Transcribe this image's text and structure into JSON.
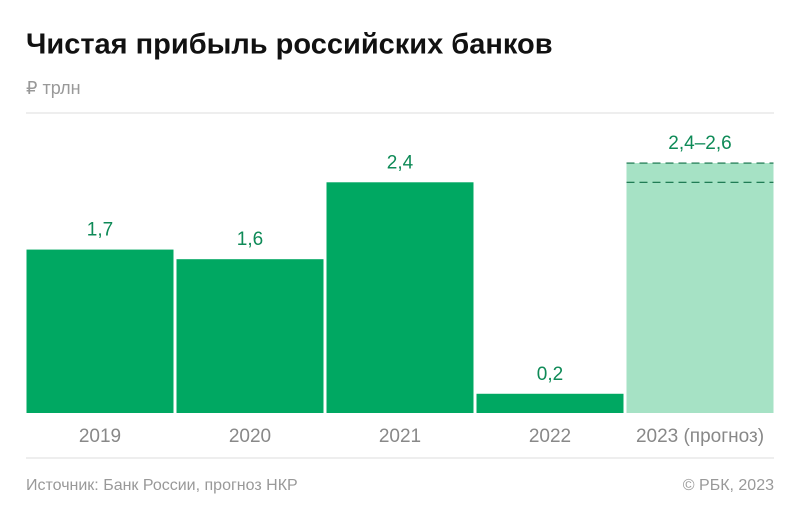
{
  "chart_data": {
    "type": "bar",
    "title": "Чистая прибыль российских банков",
    "subtitle": "₽ трлн",
    "categories": [
      "2019",
      "2020",
      "2021",
      "2022",
      "2023 (прогноз)"
    ],
    "values": [
      1.7,
      1.6,
      2.4,
      0.2,
      null
    ],
    "value_labels": [
      "1,7",
      "1,6",
      "2,4",
      "0,2",
      null
    ],
    "color": "#00a862",
    "forecast": {
      "low": 2.4,
      "high": 2.6,
      "label": "2,4–2,6",
      "color": "#a6e2c5"
    },
    "ylim": [
      0,
      3.1
    ],
    "source": "Источник: Банк России, прогноз НКР",
    "credit": "© РБК, 2023"
  }
}
